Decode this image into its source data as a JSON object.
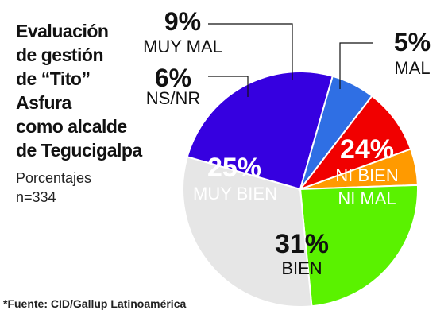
{
  "title_lines": [
    "Evaluación",
    "de gestión",
    "de “Tito”",
    "Asfura",
    "como alcalde",
    "de Tegucigalpa"
  ],
  "subtitle": "Porcentajes",
  "sample_size": "n=334",
  "source": "*Fuente: CID/Gallup Latinoamérica",
  "chart_data": {
    "type": "pie",
    "title": "Evaluación de gestión de “Tito” Asfura como alcalde de Tegucigalpa",
    "unit": "Porcentajes",
    "slices": [
      {
        "label": "MAL",
        "label_lines": [
          "MAL"
        ],
        "value": 5,
        "value_label": "5%",
        "color": "#ff9a00"
      },
      {
        "label": "NI BIEN NI MAL",
        "label_lines": [
          "NI BIEN",
          "NI MAL"
        ],
        "value": 24,
        "value_label": "24%",
        "color": "#5af200"
      },
      {
        "label": "BIEN",
        "label_lines": [
          "BIEN"
        ],
        "value": 31,
        "value_label": "31%",
        "color": "#e6e6e6"
      },
      {
        "label": "MUY BIEN",
        "label_lines": [
          "MUY BIEN"
        ],
        "value": 25,
        "value_label": "25%",
        "color": "#3600e0"
      },
      {
        "label": "NS/NR",
        "label_lines": [
          "NS/NR"
        ],
        "value": 6,
        "value_label": "6%",
        "color": "#2f6fe4"
      },
      {
        "label": "MUY MAL",
        "label_lines": [
          "MUY MAL"
        ],
        "value": 9,
        "value_label": "9%",
        "color": "#f10000"
      }
    ]
  }
}
